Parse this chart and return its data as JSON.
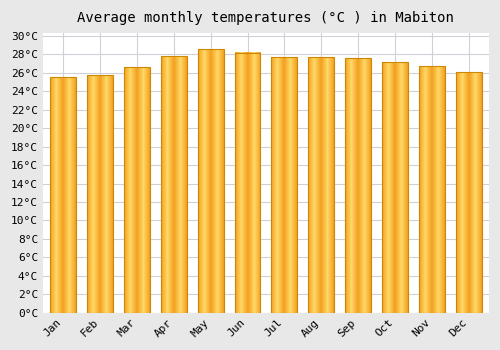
{
  "title": "Average monthly temperatures (°C ) in Mabiton",
  "months": [
    "Jan",
    "Feb",
    "Mar",
    "Apr",
    "May",
    "Jun",
    "Jul",
    "Aug",
    "Sep",
    "Oct",
    "Nov",
    "Dec"
  ],
  "values": [
    25.5,
    25.8,
    26.6,
    27.8,
    28.6,
    28.2,
    27.7,
    27.7,
    27.6,
    27.2,
    26.7,
    26.1
  ],
  "bar_color_center": "#FFD966",
  "bar_color_edge": "#F4A020",
  "bar_edge_color": "#CC8800",
  "ylim_min": 0,
  "ylim_max": 30,
  "ytick_step": 2,
  "plot_bg_color": "#ffffff",
  "fig_bg_color": "#e8e8e8",
  "grid_color": "#d0d0d8",
  "title_fontsize": 10,
  "tick_fontsize": 8,
  "bar_width": 0.7
}
